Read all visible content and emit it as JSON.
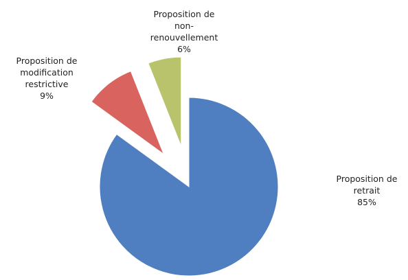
{
  "chart_data": {
    "type": "pie",
    "categories": [
      "Proposition de retrait",
      "Proposition de modification restrictive",
      "Proposition de non-renouvellement"
    ],
    "values": [
      85,
      9,
      6
    ],
    "value_labels": [
      "85%",
      "9%",
      "6%"
    ],
    "colors": [
      "#4f7fc0",
      "#d9645f",
      "#b9c36c"
    ]
  }
}
